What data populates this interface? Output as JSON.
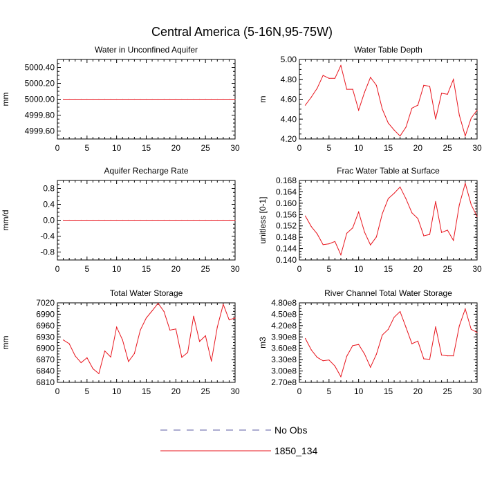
{
  "title": "Central America (5-16N,95-75W)",
  "legend": [
    {
      "label": "No Obs",
      "color": "#5a5aa0",
      "dash": true
    },
    {
      "label": "1850_134",
      "color": "#e8141c",
      "dash": false
    }
  ],
  "chart_data": [
    {
      "type": "line",
      "title": "Water in Unconfined Aquifer",
      "ylabel": "mm",
      "xlim": [
        0,
        30
      ],
      "xticks": [
        0,
        5,
        10,
        15,
        20,
        25,
        30
      ],
      "ylim": [
        4999.5,
        5000.5
      ],
      "yticks": [
        "4999.60",
        "4999.80",
        "5000.00",
        "5000.20",
        "5000.40"
      ],
      "series": [
        {
          "name": "1850_134",
          "x": [
            1,
            2,
            3,
            4,
            5,
            6,
            7,
            8,
            9,
            10,
            11,
            12,
            13,
            14,
            15,
            16,
            17,
            18,
            19,
            20,
            21,
            22,
            23,
            24,
            25,
            26,
            27,
            28,
            29,
            30
          ],
          "values": [
            5000,
            5000,
            5000,
            5000,
            5000,
            5000,
            5000,
            5000,
            5000,
            5000,
            5000,
            5000,
            5000,
            5000,
            5000,
            5000,
            5000,
            5000,
            5000,
            5000,
            5000,
            5000,
            5000,
            5000,
            5000,
            5000,
            5000,
            5000,
            5000,
            5000
          ]
        }
      ]
    },
    {
      "type": "line",
      "title": "Water Table Depth",
      "ylabel": "m",
      "xlim": [
        0,
        30
      ],
      "xticks": [
        0,
        5,
        10,
        15,
        20,
        25,
        30
      ],
      "ylim": [
        4.2,
        5.0
      ],
      "yticks": [
        "4.20",
        "4.40",
        "4.60",
        "4.80",
        "5.00"
      ],
      "series": [
        {
          "name": "1850_134",
          "x": [
            1,
            2,
            3,
            4,
            5,
            6,
            7,
            8,
            9,
            10,
            11,
            12,
            13,
            14,
            15,
            16,
            17,
            18,
            19,
            20,
            21,
            22,
            23,
            24,
            25,
            26,
            27,
            28,
            29,
            30
          ],
          "values": [
            4.54,
            4.62,
            4.71,
            4.84,
            4.81,
            4.81,
            4.94,
            4.7,
            4.7,
            4.49,
            4.67,
            4.82,
            4.74,
            4.5,
            4.36,
            4.29,
            4.23,
            4.32,
            4.51,
            4.54,
            4.74,
            4.73,
            4.4,
            4.66,
            4.65,
            4.8,
            4.44,
            4.23,
            4.41,
            4.49
          ]
        }
      ]
    },
    {
      "type": "line",
      "title": "Aquifer Recharge Rate",
      "ylabel": "mm/d",
      "xlim": [
        0,
        30
      ],
      "xticks": [
        0,
        5,
        10,
        15,
        20,
        25,
        30
      ],
      "ylim": [
        -1.0,
        1.0
      ],
      "yticks": [
        "-0.8",
        "-0.4",
        "0.0",
        "0.4",
        "0.8"
      ],
      "series": [
        {
          "name": "1850_134",
          "x": [
            1,
            2,
            3,
            4,
            5,
            6,
            7,
            8,
            9,
            10,
            11,
            12,
            13,
            14,
            15,
            16,
            17,
            18,
            19,
            20,
            21,
            22,
            23,
            24,
            25,
            26,
            27,
            28,
            29,
            30
          ],
          "values": [
            0,
            0,
            0,
            0,
            0,
            0,
            0,
            0,
            0,
            0,
            0,
            0,
            0,
            0,
            0,
            0,
            0,
            0,
            0,
            0,
            0,
            0,
            0,
            0,
            0,
            0,
            0,
            0,
            0,
            0
          ]
        }
      ]
    },
    {
      "type": "line",
      "title": "Frac Water Table at Surface",
      "ylabel": "unitless [0-1]",
      "xlim": [
        0,
        30
      ],
      "xticks": [
        0,
        5,
        10,
        15,
        20,
        25,
        30
      ],
      "ylim": [
        0.14,
        0.168
      ],
      "yticks": [
        "0.140",
        "0.144",
        "0.148",
        "0.152",
        "0.156",
        "0.160",
        "0.164",
        "0.168"
      ],
      "series": [
        {
          "name": "1850_134",
          "x": [
            1,
            2,
            3,
            4,
            5,
            6,
            7,
            8,
            9,
            10,
            11,
            12,
            13,
            14,
            15,
            16,
            17,
            18,
            19,
            20,
            21,
            22,
            23,
            24,
            25,
            26,
            27,
            28,
            29,
            30
          ],
          "values": [
            0.1555,
            0.1518,
            0.1492,
            0.1454,
            0.1457,
            0.1465,
            0.1418,
            0.1494,
            0.1513,
            0.1569,
            0.1498,
            0.1453,
            0.1481,
            0.1563,
            0.1616,
            0.1635,
            0.1657,
            0.1615,
            0.1566,
            0.1546,
            0.1485,
            0.149,
            0.1606,
            0.1497,
            0.1505,
            0.1469,
            0.1594,
            0.167,
            0.1595,
            0.1553
          ]
        }
      ]
    },
    {
      "type": "line",
      "title": "Total Water Storage",
      "ylabel": "mm",
      "xlim": [
        0,
        30
      ],
      "xticks": [
        0,
        5,
        10,
        15,
        20,
        25,
        30
      ],
      "ylim": [
        6810,
        7020
      ],
      "yticks": [
        "6810",
        "6840",
        "6870",
        "6900",
        "6930",
        "6960",
        "6990",
        "7020"
      ],
      "series": [
        {
          "name": "1850_134",
          "x": [
            1,
            2,
            3,
            4,
            5,
            6,
            7,
            8,
            9,
            10,
            11,
            12,
            13,
            14,
            15,
            16,
            17,
            18,
            19,
            20,
            21,
            22,
            23,
            24,
            25,
            26,
            27,
            28,
            29,
            30
          ],
          "values": [
            6922,
            6912,
            6880,
            6862,
            6875,
            6846,
            6833,
            6893,
            6877,
            6956,
            6922,
            6865,
            6886,
            6948,
            6980,
            6999,
            7019,
            6997,
            6948,
            6951,
            6876,
            6889,
            6985,
            6918,
            6933,
            6866,
            6956,
            7016,
            6975,
            6980
          ]
        }
      ]
    },
    {
      "type": "line",
      "title": "River Channel Total Water Storage",
      "ylabel": "m3",
      "xlim": [
        0,
        30
      ],
      "xticks": [
        0,
        5,
        10,
        15,
        20,
        25,
        30
      ],
      "ylim": [
        270000000.0,
        480000000.0
      ],
      "yticks": [
        "2.70e8",
        "3.00e8",
        "3.30e8",
        "3.60e8",
        "3.90e8",
        "4.20e8",
        "4.50e8",
        "4.80e8"
      ],
      "series": [
        {
          "name": "1850_134",
          "x": [
            1,
            2,
            3,
            4,
            5,
            6,
            7,
            8,
            9,
            10,
            11,
            12,
            13,
            14,
            15,
            16,
            17,
            18,
            19,
            20,
            21,
            22,
            23,
            24,
            25,
            26,
            27,
            28,
            29,
            30
          ],
          "values": [
            386000000.0,
            356000000.0,
            336000000.0,
            327000000.0,
            329000000.0,
            313000000.0,
            285000000.0,
            339000000.0,
            367000000.0,
            370000000.0,
            345000000.0,
            310000000.0,
            344000000.0,
            395000000.0,
            410000000.0,
            442000000.0,
            457000000.0,
            415000000.0,
            372000000.0,
            379000000.0,
            332000000.0,
            331000000.0,
            417000000.0,
            342000000.0,
            340000000.0,
            340000000.0,
            419000000.0,
            464000000.0,
            410000000.0,
            402000000.0
          ]
        }
      ]
    }
  ]
}
